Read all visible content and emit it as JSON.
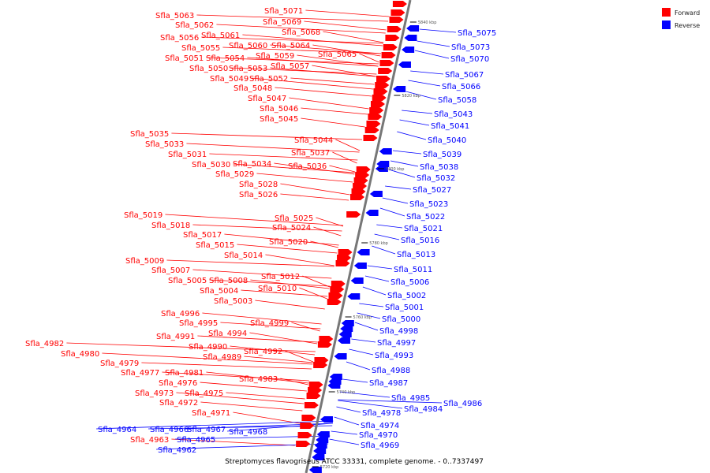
{
  "legend": {
    "forward": {
      "label": "Forward",
      "color": "#ff0000"
    },
    "reverse": {
      "label": "Reverse",
      "color": "#0000ff"
    }
  },
  "caption": "Streptomyces flavogriseus ATCC 33331, complete genome. - 0..7337497",
  "scale_labels": [
    "5840 kbp",
    "5820 kbp",
    "5800 kbp",
    "5780 kbp",
    "5760 kbp",
    "5740 kbp",
    "5720 kbp"
  ],
  "forward_genes": [
    "Sfla_5071",
    "Sfla_5069",
    "Sfla_5068",
    "Sfla_5063",
    "Sfla_5062",
    "Sfla_5061",
    "Sfla_5056",
    "Sfla_5060",
    "Sfla_5064",
    "Sfla_5055",
    "Sfla_5065",
    "Sfla_5059",
    "Sfla_5051",
    "Sfla_5054",
    "Sfla_5057",
    "Sfla_5050",
    "Sfla_5053",
    "Sfla_5049",
    "Sfla_5052",
    "Sfla_5048",
    "Sfla_5047",
    "Sfla_5046",
    "Sfla_5045",
    "Sfla_5044",
    "Sfla_5035",
    "Sfla_5033",
    "Sfla_5037",
    "Sfla_5031",
    "Sfla_5030",
    "Sfla_5034",
    "Sfla_5036",
    "Sfla_5029",
    "Sfla_5028",
    "Sfla_5026",
    "Sfla_5025",
    "Sfla_5019",
    "Sfla_5018",
    "Sfla_5024",
    "Sfla_5017",
    "Sfla_5020",
    "Sfla_5015",
    "Sfla_5014",
    "Sfla_5009",
    "Sfla_5007",
    "Sfla_5012",
    "Sfla_5005",
    "Sfla_5008",
    "Sfla_5010",
    "Sfla_5004",
    "Sfla_5003",
    "Sfla_4996",
    "Sfla_4995",
    "Sfla_4999",
    "Sfla_4994",
    "Sfla_4991",
    "Sfla_4990",
    "Sfla_4992",
    "Sfla_4989",
    "Sfla_4982",
    "Sfla_4980",
    "Sfla_4979",
    "Sfla_4977",
    "Sfla_4981",
    "Sfla_4983",
    "Sfla_4976",
    "Sfla_4973",
    "Sfla_4975",
    "Sfla_4972",
    "Sfla_4971",
    "Sfla_4963"
  ],
  "reverse_genes": [
    "Sfla_5075",
    "Sfla_5073",
    "Sfla_5070",
    "Sfla_5067",
    "Sfla_5066",
    "Sfla_5058",
    "Sfla_5043",
    "Sfla_5041",
    "Sfla_5040",
    "Sfla_5039",
    "Sfla_5038",
    "Sfla_5032",
    "Sfla_5027",
    "Sfla_5023",
    "Sfla_5022",
    "Sfla_5021",
    "Sfla_5016",
    "Sfla_5013",
    "Sfla_5011",
    "Sfla_5006",
    "Sfla_5002",
    "Sfla_5001",
    "Sfla_5000",
    "Sfla_4998",
    "Sfla_4997",
    "Sfla_4993",
    "Sfla_4988",
    "Sfla_4987",
    "Sfla_4985",
    "Sfla_4984",
    "Sfla_4986",
    "Sfla_4978",
    "Sfla_4974",
    "Sfla_4970",
    "Sfla_4969",
    "Sfla_4964",
    "Sfla_4966",
    "Sfla_4967",
    "Sfla_4968",
    "Sfla_4965",
    "Sfla_4962"
  ]
}
